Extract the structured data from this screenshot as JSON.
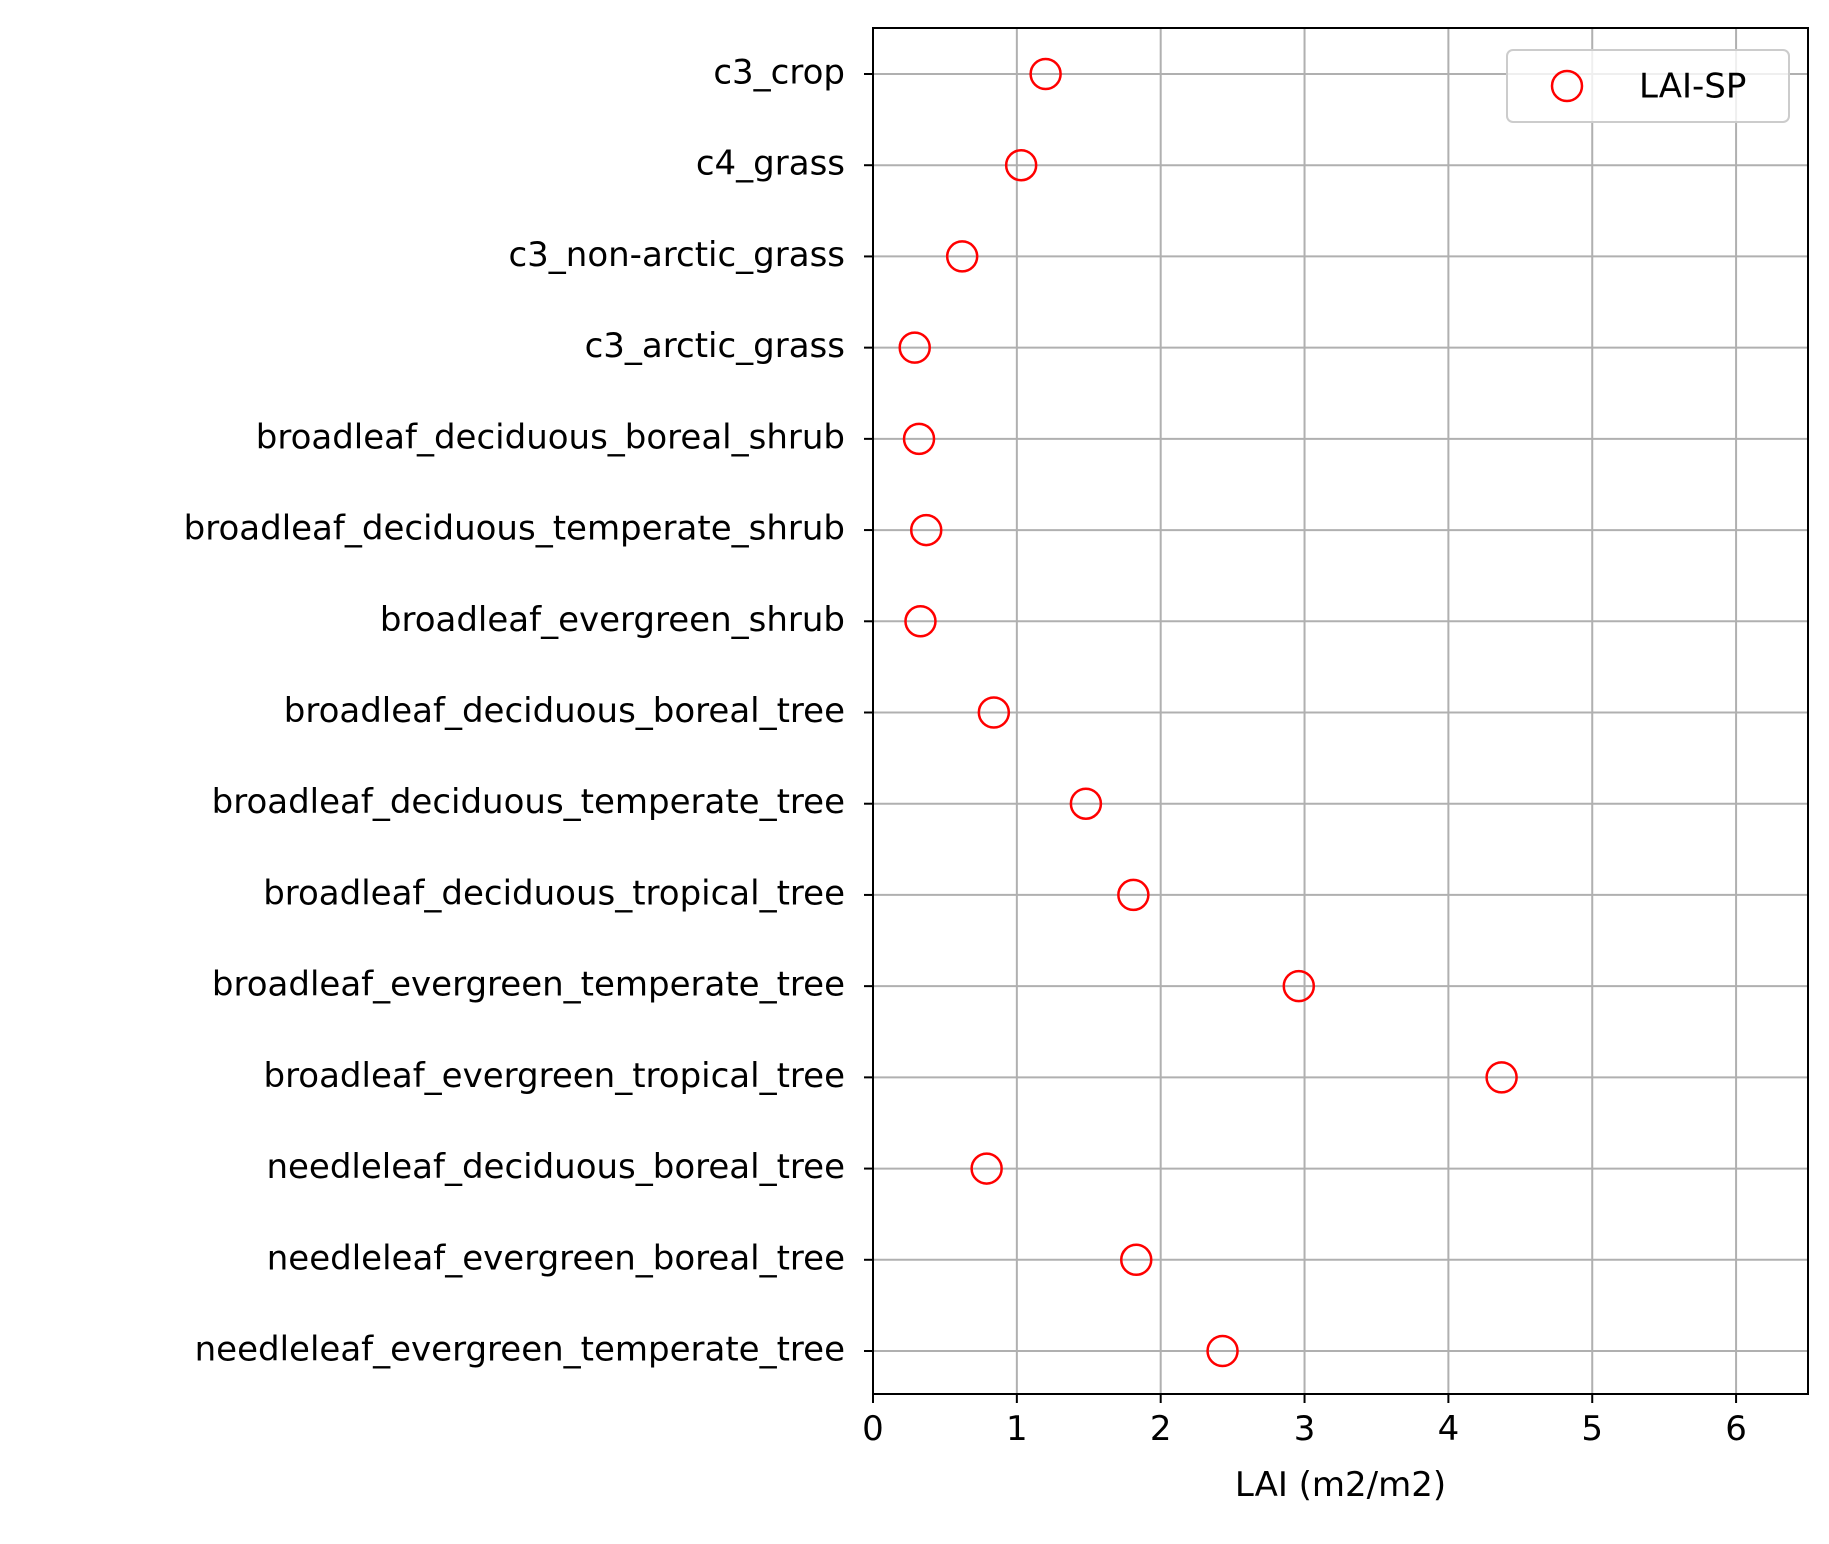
{
  "chart_data": {
    "type": "scatter",
    "title": "",
    "xlabel": "LAI (m2/m2)",
    "ylabel": "",
    "xlim": [
      0,
      6.5
    ],
    "xticks": [
      0,
      1,
      2,
      3,
      4,
      5,
      6
    ],
    "xtick_labels": [
      "0",
      "1",
      "2",
      "3",
      "4",
      "5",
      "6"
    ],
    "grid": true,
    "legend_position": "top-right",
    "categories": [
      "c3_crop",
      "c4_grass",
      "c3_non-arctic_grass",
      "c3_arctic_grass",
      "broadleaf_deciduous_boreal_shrub",
      "broadleaf_deciduous_temperate_shrub",
      "broadleaf_evergreen_shrub",
      "broadleaf_deciduous_boreal_tree",
      "broadleaf_deciduous_temperate_tree",
      "broadleaf_deciduous_tropical_tree",
      "broadleaf_evergreen_temperate_tree",
      "broadleaf_evergreen_tropical_tree",
      "needleleaf_deciduous_boreal_tree",
      "needleleaf_evergreen_boreal_tree",
      "needleleaf_evergreen_temperate_tree"
    ],
    "series": [
      {
        "name": "LAI-SP",
        "marker": "open-circle",
        "color": "#ff0000",
        "values": [
          1.2,
          1.03,
          0.62,
          0.29,
          0.32,
          0.37,
          0.33,
          0.84,
          1.48,
          1.81,
          2.96,
          4.37,
          0.79,
          1.83,
          2.43
        ]
      }
    ]
  }
}
